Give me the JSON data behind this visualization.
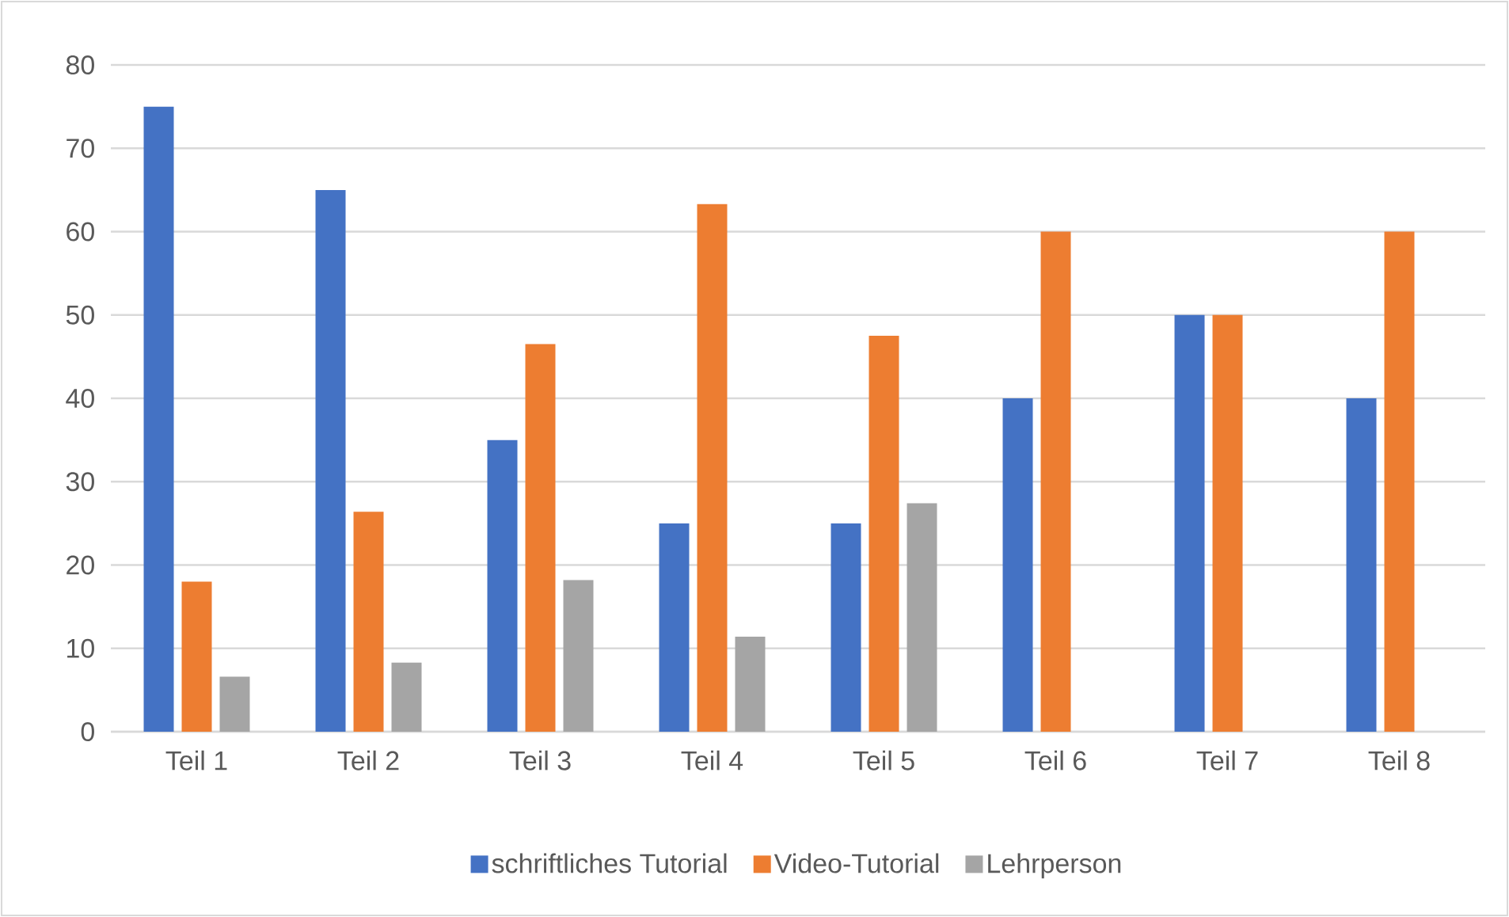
{
  "chart_data": {
    "type": "bar",
    "categories": [
      "Teil 1",
      "Teil 2",
      "Teil 3",
      "Teil 4",
      "Teil 5",
      "Teil 6",
      "Teil 7",
      "Teil 8"
    ],
    "series": [
      {
        "name": "schriftliches Tutorial",
        "color": "#4472c4",
        "values": [
          75,
          65,
          35,
          25,
          25,
          40,
          50,
          40
        ]
      },
      {
        "name": "Video-Tutorial",
        "color": "#ed7d31",
        "values": [
          18,
          26.4,
          46.5,
          63.3,
          47.5,
          60,
          50,
          60
        ]
      },
      {
        "name": "Lehrperson",
        "color": "#a5a5a5",
        "values": [
          6.6,
          8.3,
          18.2,
          11.4,
          27.4,
          null,
          null,
          null
        ]
      }
    ],
    "ylim": [
      0,
      80
    ],
    "yticks": [
      0,
      10,
      20,
      30,
      40,
      50,
      60,
      70,
      80
    ],
    "grid": "y",
    "legend": "bottom"
  }
}
